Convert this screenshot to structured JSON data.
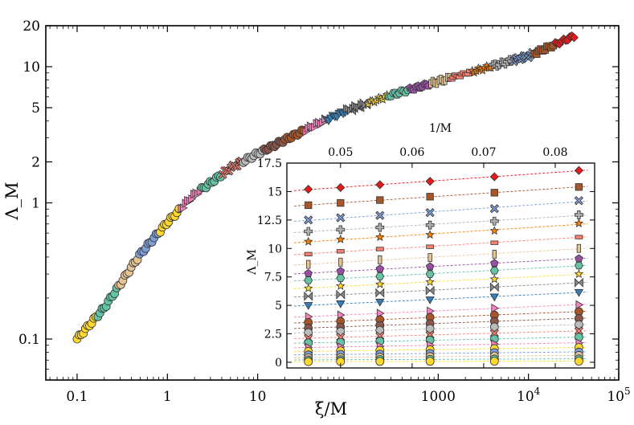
{
  "chart_data": [
    {
      "id": "main",
      "type": "scatter",
      "title": "",
      "xlabel": "ξ/M",
      "ylabel": "Λ_M",
      "xscale": "log",
      "yscale": "log",
      "xlim": [
        0.045,
        100000
      ],
      "ylim": [
        0.05,
        20
      ],
      "xticks": [
        {
          "value": 0.1,
          "label": "0.1"
        },
        {
          "value": 1,
          "label": "1"
        },
        {
          "value": 10,
          "label": "10"
        },
        {
          "value": 1000,
          "label": "1000"
        },
        {
          "value": 10000,
          "label": "10",
          "sup": "4"
        },
        {
          "value": 100000,
          "label": "10",
          "sup": "5"
        }
      ],
      "yticks": [
        {
          "value": 0.1,
          "label": "0.1"
        },
        {
          "value": 1,
          "label": "1"
        },
        {
          "value": 2,
          "label": "2"
        },
        {
          "value": 5,
          "label": "5"
        },
        {
          "value": 10,
          "label": "10"
        },
        {
          "value": 20,
          "label": "20"
        }
      ],
      "collapse_curve": [
        [
          0.1,
          0.1
        ],
        [
          0.2,
          0.17
        ],
        [
          0.5,
          0.42
        ],
        [
          1,
          0.72
        ],
        [
          2,
          1.15
        ],
        [
          5,
          1.8
        ],
        [
          10,
          2.3
        ],
        [
          20,
          2.9
        ],
        [
          50,
          3.9
        ],
        [
          100,
          4.8
        ],
        [
          300,
          6.2
        ],
        [
          1000,
          7.8
        ],
        [
          3000,
          9.6
        ],
        [
          10000,
          12.0
        ],
        [
          32000,
          16.8
        ]
      ]
    },
    {
      "id": "inset",
      "type": "scatter",
      "title": "",
      "xlabel": "1/M",
      "ylabel": "Λ_M",
      "xlim": [
        0.0425,
        0.0855
      ],
      "ylim": [
        -0.5,
        17.5
      ],
      "xticks": [
        {
          "value": 0.05,
          "label": "0.05"
        },
        {
          "value": 0.06,
          "label": "0.06"
        },
        {
          "value": 0.07,
          "label": "0.07"
        },
        {
          "value": 0.08,
          "label": "0.08"
        }
      ],
      "yticks": [
        {
          "value": 0,
          "label": "0"
        },
        {
          "value": 2.5,
          "label": "2.5"
        },
        {
          "value": 5,
          "label": "5"
        },
        {
          "value": 7.5,
          "label": "7.5"
        },
        {
          "value": 10,
          "label": "10"
        },
        {
          "value": 12.5,
          "label": "12.5"
        },
        {
          "value": 15,
          "label": "15"
        },
        {
          "value": 17.5,
          "label": "17.5"
        }
      ],
      "x": [
        0.0455,
        0.05,
        0.0555,
        0.0625,
        0.0715,
        0.0833
      ],
      "series": [
        {
          "name": "s1",
          "marker": "diamond",
          "color": "#e41a1c",
          "values": [
            15.2,
            15.35,
            15.6,
            15.9,
            16.3,
            16.85
          ]
        },
        {
          "name": "s2",
          "marker": "square",
          "color": "#a65628",
          "values": [
            13.8,
            14.0,
            14.25,
            14.55,
            14.9,
            15.4
          ]
        },
        {
          "name": "s3",
          "marker": "x",
          "color": "#7f9fd8",
          "values": [
            12.5,
            12.7,
            12.9,
            13.15,
            13.5,
            14.2
          ]
        },
        {
          "name": "s4",
          "marker": "plus",
          "color": "#b0b0b0",
          "values": [
            11.5,
            11.65,
            11.85,
            12.05,
            12.4,
            12.95
          ]
        },
        {
          "name": "s5",
          "marker": "star",
          "color": "#ff7f00",
          "values": [
            10.6,
            10.8,
            11.0,
            11.2,
            11.55,
            12.2
          ]
        },
        {
          "name": "s6",
          "marker": "rect",
          "color": "#fb8072",
          "values": [
            9.5,
            9.75,
            9.95,
            10.15,
            10.5,
            11.0
          ]
        },
        {
          "name": "s7",
          "marker": "vbar",
          "color": "#e5c494",
          "values": [
            8.6,
            8.8,
            9.0,
            9.2,
            9.5,
            10.0
          ]
        },
        {
          "name": "s8",
          "marker": "pentagon",
          "color": "#984ea3",
          "values": [
            7.8,
            8.0,
            8.2,
            8.4,
            8.7,
            9.1
          ]
        },
        {
          "name": "s9",
          "marker": "hexagon",
          "color": "#66c2a5",
          "values": [
            7.2,
            7.4,
            7.55,
            7.75,
            8.05,
            8.5
          ]
        },
        {
          "name": "s10",
          "marker": "star",
          "color": "#ffd92f",
          "values": [
            6.5,
            6.7,
            6.85,
            7.05,
            7.3,
            7.75
          ]
        },
        {
          "name": "s11",
          "marker": "bowtie",
          "color": "#888888",
          "values": [
            5.8,
            5.95,
            6.1,
            6.3,
            6.6,
            7.0
          ]
        },
        {
          "name": "s12",
          "marker": "tri-down",
          "color": "#377eb8",
          "values": [
            5.0,
            5.15,
            5.3,
            5.5,
            5.75,
            6.15
          ]
        },
        {
          "name": "s13",
          "marker": "tri-right",
          "color": "#f781bf",
          "values": [
            4.0,
            4.15,
            4.3,
            4.5,
            4.75,
            5.05
          ]
        },
        {
          "name": "s14",
          "marker": "circle",
          "color": "#a65628",
          "values": [
            3.5,
            3.6,
            3.75,
            3.95,
            4.15,
            4.45
          ]
        },
        {
          "name": "s15",
          "marker": "circle",
          "color": "#8c564b",
          "values": [
            3.0,
            3.1,
            3.25,
            3.4,
            3.6,
            3.85
          ]
        },
        {
          "name": "s16",
          "marker": "circle",
          "color": "#bbbbbb",
          "values": [
            2.6,
            2.7,
            2.8,
            2.95,
            3.1,
            3.3
          ]
        },
        {
          "name": "s17",
          "marker": "x",
          "color": "#fb8072",
          "values": [
            2.1,
            2.2,
            2.3,
            2.4,
            2.55,
            2.75
          ]
        },
        {
          "name": "s18",
          "marker": "circle",
          "color": "#66c2a5",
          "values": [
            1.7,
            1.75,
            1.85,
            1.95,
            2.05,
            2.2
          ]
        },
        {
          "name": "s19",
          "marker": "tri-right",
          "color": "#f781bf",
          "values": [
            1.3,
            1.35,
            1.4,
            1.5,
            1.6,
            1.7
          ]
        },
        {
          "name": "s20",
          "marker": "circle",
          "color": "#ffd92f",
          "values": [
            0.95,
            1.0,
            1.05,
            1.1,
            1.2,
            1.3
          ]
        },
        {
          "name": "s21",
          "marker": "circle",
          "color": "#7f9fd8",
          "values": [
            0.65,
            0.7,
            0.72,
            0.78,
            0.85,
            0.9
          ]
        },
        {
          "name": "s22",
          "marker": "circle",
          "color": "#e5c494",
          "values": [
            0.4,
            0.42,
            0.45,
            0.5,
            0.55,
            0.6
          ]
        },
        {
          "name": "s23",
          "marker": "circle",
          "color": "#66c2a5",
          "values": [
            0.2,
            0.22,
            0.24,
            0.26,
            0.28,
            0.3
          ]
        },
        {
          "name": "s24",
          "marker": "circle",
          "color": "#ffd92f",
          "values": [
            0.05,
            0.06,
            0.07,
            0.08,
            0.09,
            0.1
          ]
        }
      ]
    }
  ]
}
